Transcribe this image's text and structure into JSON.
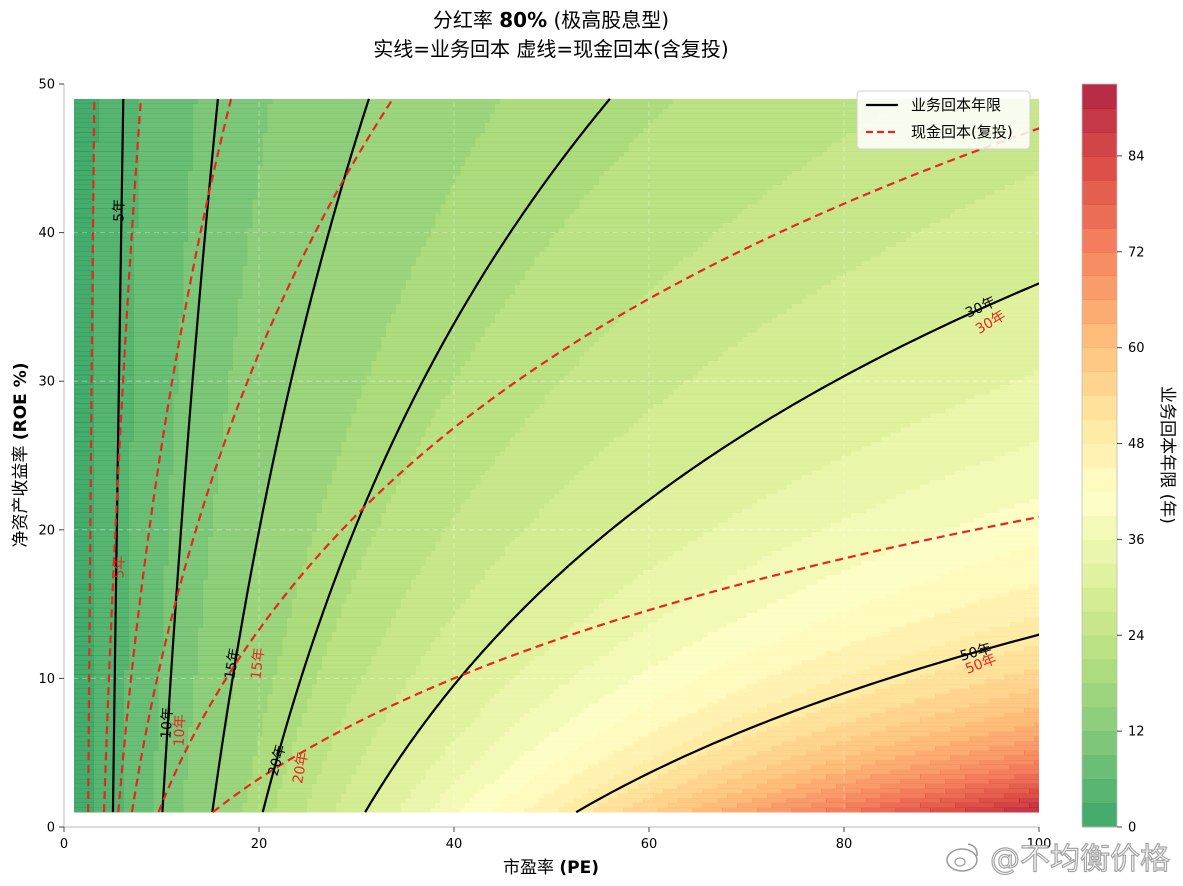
{
  "chart_data": {
    "type": "contour",
    "title_line1_prefix": "分红率 ",
    "title_line1_bold": "80%",
    "title_line1_suffix": " (极高股息型)",
    "title_line2": "实线=业务回本  虚线=现金回本(含复投)",
    "xlabel_prefix": "市盈率 ",
    "xlabel_bold": "(PE)",
    "ylabel_prefix": "净资产收益率 ",
    "ylabel_bold": "(ROE %)",
    "colorbar_label": "业务回本年限 (年)",
    "xlim": [
      0,
      100
    ],
    "ylim": [
      0,
      50
    ],
    "data_x_range": [
      1,
      100
    ],
    "data_y_range": [
      1,
      49
    ],
    "payout_ratio": 0.8,
    "x_ticks": [
      "0",
      "20",
      "40",
      "60",
      "80",
      "100"
    ],
    "x_tick_values": [
      0,
      20,
      40,
      60,
      80,
      100
    ],
    "y_ticks": [
      "0",
      "10",
      "20",
      "30",
      "40",
      "50"
    ],
    "y_tick_values": [
      0,
      10,
      20,
      30,
      40,
      50
    ],
    "colorbar_ticks": [
      "0",
      "12",
      "24",
      "36",
      "48",
      "60",
      "72",
      "84"
    ],
    "colorbar_tick_values": [
      0,
      12,
      24,
      36,
      48,
      60,
      72,
      84
    ],
    "colorbar_range": [
      0,
      93
    ],
    "fill_step": 3,
    "grid": true,
    "colormap": [
      "#1a9850",
      "#66bd63",
      "#a6d96a",
      "#d9ef8b",
      "#ffffbf",
      "#fee08b",
      "#fdae61",
      "#f46d43",
      "#d73027",
      "#a50026"
    ],
    "legend": {
      "position": "top-right",
      "entries": [
        {
          "label": "业务回本年限",
          "style": "solid",
          "color": "#000000"
        },
        {
          "label": "现金回本(复投)",
          "style": "dashed",
          "color": "#e8261f"
        }
      ]
    },
    "series": [
      {
        "name": "业务回本年限",
        "style": "solid",
        "color": "#000000",
        "levels": [
          5,
          10,
          15,
          20,
          30,
          50
        ],
        "labels": [
          {
            "text": "5年",
            "x": 5.6,
            "y": 41.5
          },
          {
            "text": "10年",
            "x": 10.5,
            "y": 7.0
          },
          {
            "text": "15年",
            "x": 17.2,
            "y": 11.0
          },
          {
            "text": "20年",
            "x": 21.8,
            "y": 4.5
          },
          {
            "text": "30年",
            "x": 94.0,
            "y": 35.0
          },
          {
            "text": "50年",
            "x": 93.5,
            "y": 11.8
          }
        ]
      },
      {
        "name": "现金回本(复投)",
        "style": "dashed",
        "color": "#e8261f",
        "levels": [
          5,
          10,
          15,
          20,
          30,
          50
        ],
        "labels": [
          {
            "text": "5年",
            "x": 5.6,
            "y": 17.5
          },
          {
            "text": "10年",
            "x": 11.8,
            "y": 6.5
          },
          {
            "text": "15年",
            "x": 19.8,
            "y": 11.0
          },
          {
            "text": "20年",
            "x": 24.2,
            "y": 4.0
          },
          {
            "text": "30年",
            "x": 95.0,
            "y": 34.0
          },
          {
            "text": "50年",
            "x": 94.0,
            "y": 11.0
          }
        ]
      }
    ]
  },
  "watermark": "@不均衡价格"
}
